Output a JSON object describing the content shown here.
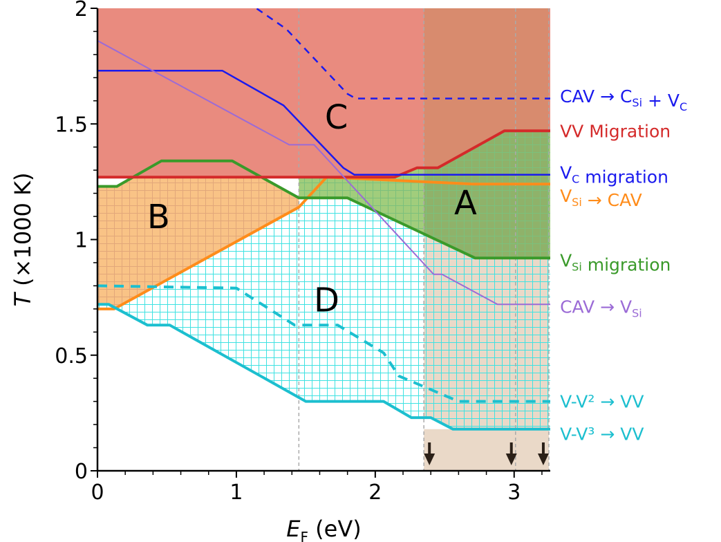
{
  "chart_data": {
    "type": "line",
    "xlabel": {
      "symbol": "E",
      "sub": "F",
      "unit": "(eV)"
    },
    "ylabel": {
      "symbol": "T",
      "unit": "(×1000 K)"
    },
    "xlim": [
      0,
      3.26
    ],
    "ylim": [
      0,
      2
    ],
    "x_ticks": [
      {
        "value": 0,
        "label": "0"
      },
      {
        "value": 1,
        "label": "1"
      },
      {
        "value": 2,
        "label": "2"
      },
      {
        "value": 3,
        "label": "3"
      }
    ],
    "y_ticks": [
      {
        "value": 0,
        "label": "0"
      },
      {
        "value": 0.5,
        "label": "0.5"
      },
      {
        "value": 1,
        "label": "1"
      },
      {
        "value": 1.5,
        "label": "1.5"
      },
      {
        "value": 2,
        "label": "2"
      }
    ],
    "x_minor_step": 0.2,
    "y_minor_step": 0.1,
    "vlines": [
      1.45,
      2.35,
      3.01,
      3.25
    ],
    "arrows_at_x": [
      2.39,
      2.98,
      3.21
    ],
    "colors": {
      "region_c": "#e98b7f",
      "region_c_dark": "#d88b6e",
      "region_b": "#f9c386",
      "region_a": "#a1cd7c",
      "region_d": "#ffffff",
      "tan": "#ead9c8",
      "grid_b": "#e2a77a",
      "grid_a": "#7cc07c",
      "grid_d": "#3ee2e2",
      "vline": "#aaaaaa",
      "arrow": "#2b2018"
    },
    "regions": [
      {
        "name": "C",
        "label": "C",
        "label_at": [
          1.72,
          1.53
        ]
      },
      {
        "name": "B",
        "label": "B",
        "label_at": [
          0.44,
          1.1
        ]
      },
      {
        "name": "A",
        "label": "A",
        "label_at": [
          2.65,
          1.16
        ]
      },
      {
        "name": "D",
        "label": "D",
        "label_at": [
          1.65,
          0.74
        ]
      }
    ],
    "series": [
      {
        "name": "vsi_to_cav",
        "label": [
          {
            "t": "V"
          },
          {
            "t": "Si",
            "sub": true
          },
          {
            "t": " → CAV"
          }
        ],
        "color": "#ff8c1a",
        "width": 4,
        "dash": "",
        "x": [
          0,
          0.12,
          1.45,
          1.65,
          2.7,
          3.26
        ],
        "y": [
          0.7,
          0.7,
          1.14,
          1.27,
          1.24,
          1.24
        ],
        "label_pos": [
          3.33,
          1.19
        ]
      },
      {
        "name": "vsi_migration",
        "label": [
          {
            "t": "V"
          },
          {
            "t": "Si",
            "sub": true
          },
          {
            "t": " migration"
          }
        ],
        "color": "#3a9a2a",
        "width": 4,
        "dash": "",
        "x": [
          0,
          0.14,
          0.46,
          0.97,
          1.45,
          1.8,
          2.72,
          3.26
        ],
        "y": [
          1.23,
          1.23,
          1.34,
          1.34,
          1.18,
          1.18,
          0.92,
          0.92
        ],
        "label_pos": [
          3.33,
          0.91
        ]
      },
      {
        "name": "vv_migration",
        "label": [
          {
            "t": "VV Migration"
          }
        ],
        "color": "#d42a2a",
        "width": 4,
        "dash": "",
        "x": [
          0,
          2.14,
          2.3,
          2.45,
          2.93,
          3.26
        ],
        "y": [
          1.27,
          1.27,
          1.31,
          1.31,
          1.47,
          1.47
        ],
        "label_pos": [
          3.33,
          1.47
        ]
      },
      {
        "name": "vc_migration",
        "label": [
          {
            "t": "V"
          },
          {
            "t": "C",
            "sub": true
          },
          {
            "t": " migration"
          }
        ],
        "color": "#1a1aee",
        "width": 2.5,
        "dash": "",
        "x": [
          0,
          0.9,
          1.34,
          1.77,
          1.85,
          3.26
        ],
        "y": [
          1.73,
          1.73,
          1.58,
          1.31,
          1.28,
          1.28
        ],
        "label_pos": [
          3.33,
          1.29
        ]
      },
      {
        "name": "cav_to_csi_vc",
        "label": [
          {
            "t": "CAV → C"
          },
          {
            "t": "Si",
            "sub": true
          },
          {
            "t": " + V"
          },
          {
            "t": "C",
            "sub": true
          }
        ],
        "color": "#1a1aee",
        "width": 2.5,
        "dash": "10,8",
        "x": [
          1.0,
          1.36,
          1.8,
          1.86,
          3.26
        ],
        "y": [
          2.06,
          1.91,
          1.63,
          1.61,
          1.61
        ],
        "label_pos": [
          3.33,
          1.62
        ]
      },
      {
        "name": "cav_to_vsi",
        "label": [
          {
            "t": "CAV → V"
          },
          {
            "t": "Si",
            "sub": true
          }
        ],
        "color": "#9b6bd6",
        "width": 2,
        "dash": "",
        "x": [
          0,
          1.38,
          1.56,
          2.42,
          2.48,
          2.88,
          3.26
        ],
        "y": [
          1.86,
          1.41,
          1.41,
          0.85,
          0.85,
          0.72,
          0.72
        ],
        "label_pos": [
          3.33,
          0.71
        ]
      },
      {
        "name": "v_v2_to_vv",
        "label": [
          {
            "t": "V-V² → VV"
          }
        ],
        "color": "#1cbfcf",
        "width": 4,
        "dash": "14,10",
        "x": [
          0,
          1.0,
          1.42,
          1.73,
          2.06,
          2.17,
          2.6,
          3.26
        ],
        "y": [
          0.8,
          0.79,
          0.63,
          0.63,
          0.51,
          0.41,
          0.3,
          0.3
        ],
        "label_pos": [
          3.33,
          0.3
        ]
      },
      {
        "name": "v_v3_to_vv",
        "label": [
          {
            "t": "V-V³ → VV"
          }
        ],
        "color": "#1cbfcf",
        "width": 4,
        "dash": "",
        "x": [
          0,
          0.08,
          0.36,
          0.52,
          1.5,
          2.06,
          2.26,
          2.4,
          2.56,
          3.26
        ],
        "y": [
          0.72,
          0.72,
          0.63,
          0.63,
          0.3,
          0.3,
          0.23,
          0.23,
          0.18,
          0.18
        ],
        "label_pos": [
          3.33,
          0.16
        ]
      }
    ]
  }
}
